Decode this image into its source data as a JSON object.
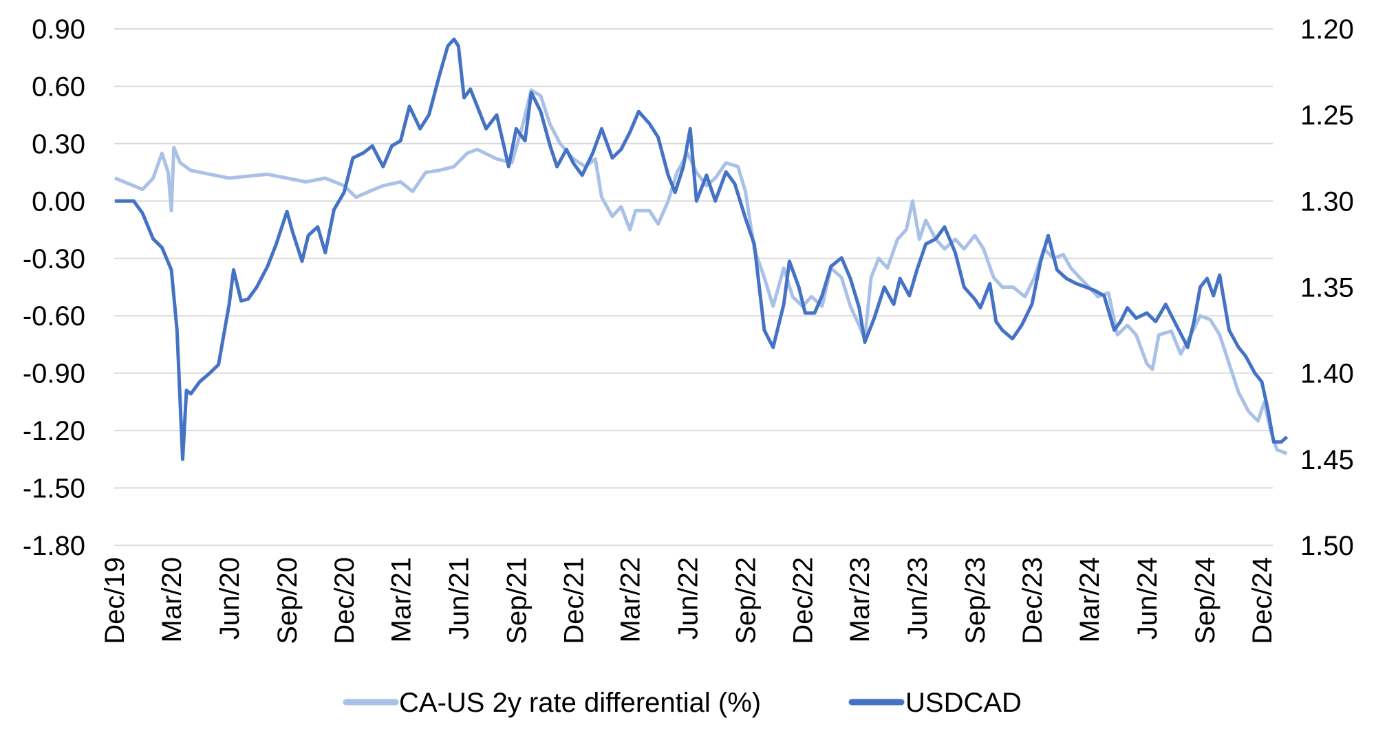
{
  "chart_data": {
    "type": "line",
    "title": "",
    "grid": true,
    "legend_position": "bottom",
    "x_ticks": [
      "Dec/19",
      "Mar/20",
      "Jun/20",
      "Sep/20",
      "Dec/20",
      "Mar/21",
      "Jun/21",
      "Sep/21",
      "Dec/21",
      "Mar/22",
      "Jun/22",
      "Sep/22",
      "Dec/22",
      "Mar/23",
      "Jun/23",
      "Sep/23",
      "Dec/23",
      "Mar/24",
      "Jun/24",
      "Sep/24",
      "Dec/24"
    ],
    "x_tick_dates": [
      "2019-12-01",
      "2020-03-01",
      "2020-06-01",
      "2020-09-01",
      "2020-12-01",
      "2021-03-01",
      "2021-06-01",
      "2021-09-01",
      "2021-12-01",
      "2022-03-01",
      "2022-06-01",
      "2022-09-01",
      "2022-12-01",
      "2023-03-01",
      "2023-06-01",
      "2023-09-01",
      "2023-12-01",
      "2024-03-01",
      "2024-06-01",
      "2024-09-01",
      "2024-12-01"
    ],
    "left_axis": {
      "ylim": [
        -1.8,
        0.9
      ],
      "ticks": [
        "0.90",
        "0.60",
        "0.30",
        "0.00",
        "-0.30",
        "-0.60",
        "-0.90",
        "-1.20",
        "-1.50",
        "-1.80"
      ]
    },
    "right_axis": {
      "ylim": [
        1.2,
        1.5
      ],
      "inverted": true,
      "ticks": [
        "1.20",
        "1.25",
        "1.30",
        "1.35",
        "1.40",
        "1.45",
        "1.50"
      ]
    },
    "series": [
      {
        "name": "CA-US 2y rate differential (%)",
        "axis": "left",
        "color": "#a9c1e7",
        "points": [
          [
            "2019-12-02",
            0.12
          ],
          [
            "2020-01-01",
            0.08
          ],
          [
            "2020-01-15",
            0.06
          ],
          [
            "2020-02-01",
            0.12
          ],
          [
            "2020-02-15",
            0.25
          ],
          [
            "2020-02-25",
            0.15
          ],
          [
            "2020-03-01",
            -0.05
          ],
          [
            "2020-03-05",
            0.28
          ],
          [
            "2020-03-15",
            0.2
          ],
          [
            "2020-04-01",
            0.16
          ],
          [
            "2020-05-01",
            0.14
          ],
          [
            "2020-06-01",
            0.12
          ],
          [
            "2020-07-01",
            0.13
          ],
          [
            "2020-08-01",
            0.14
          ],
          [
            "2020-09-01",
            0.12
          ],
          [
            "2020-10-01",
            0.1
          ],
          [
            "2020-11-01",
            0.12
          ],
          [
            "2020-12-01",
            0.08
          ],
          [
            "2020-12-20",
            0.02
          ],
          [
            "2021-01-10",
            0.05
          ],
          [
            "2021-02-01",
            0.08
          ],
          [
            "2021-03-01",
            0.1
          ],
          [
            "2021-03-20",
            0.05
          ],
          [
            "2021-04-10",
            0.15
          ],
          [
            "2021-05-01",
            0.16
          ],
          [
            "2021-05-25",
            0.18
          ],
          [
            "2021-06-15",
            0.25
          ],
          [
            "2021-07-01",
            0.27
          ],
          [
            "2021-08-01",
            0.22
          ],
          [
            "2021-08-25",
            0.2
          ],
          [
            "2021-09-10",
            0.38
          ],
          [
            "2021-09-25",
            0.58
          ],
          [
            "2021-10-10",
            0.55
          ],
          [
            "2021-10-25",
            0.4
          ],
          [
            "2021-11-10",
            0.3
          ],
          [
            "2021-12-01",
            0.22
          ],
          [
            "2021-12-20",
            0.18
          ],
          [
            "2022-01-05",
            0.22
          ],
          [
            "2022-01-15",
            0.02
          ],
          [
            "2022-02-01",
            -0.08
          ],
          [
            "2022-02-15",
            -0.03
          ],
          [
            "2022-03-01",
            -0.15
          ],
          [
            "2022-03-10",
            -0.05
          ],
          [
            "2022-04-01",
            -0.05
          ],
          [
            "2022-04-15",
            -0.12
          ],
          [
            "2022-05-01",
            0.0
          ],
          [
            "2022-05-15",
            0.15
          ],
          [
            "2022-06-01",
            0.25
          ],
          [
            "2022-06-15",
            0.15
          ],
          [
            "2022-07-01",
            0.08
          ],
          [
            "2022-07-15",
            0.12
          ],
          [
            "2022-08-01",
            0.2
          ],
          [
            "2022-08-20",
            0.18
          ],
          [
            "2022-09-01",
            0.05
          ],
          [
            "2022-09-15",
            -0.25
          ],
          [
            "2022-10-01",
            -0.4
          ],
          [
            "2022-10-15",
            -0.55
          ],
          [
            "2022-11-01",
            -0.35
          ],
          [
            "2022-11-15",
            -0.5
          ],
          [
            "2022-12-01",
            -0.55
          ],
          [
            "2022-12-15",
            -0.5
          ],
          [
            "2023-01-01",
            -0.55
          ],
          [
            "2023-01-15",
            -0.35
          ],
          [
            "2023-02-01",
            -0.4
          ],
          [
            "2023-02-15",
            -0.55
          ],
          [
            "2023-03-01",
            -0.65
          ],
          [
            "2023-03-10",
            -0.72
          ],
          [
            "2023-03-20",
            -0.4
          ],
          [
            "2023-04-01",
            -0.3
          ],
          [
            "2023-04-15",
            -0.35
          ],
          [
            "2023-05-01",
            -0.2
          ],
          [
            "2023-05-15",
            -0.15
          ],
          [
            "2023-05-25",
            0.0
          ],
          [
            "2023-06-05",
            -0.2
          ],
          [
            "2023-06-15",
            -0.1
          ],
          [
            "2023-07-01",
            -0.2
          ],
          [
            "2023-07-15",
            -0.25
          ],
          [
            "2023-08-01",
            -0.2
          ],
          [
            "2023-08-15",
            -0.25
          ],
          [
            "2023-09-01",
            -0.18
          ],
          [
            "2023-09-15",
            -0.25
          ],
          [
            "2023-10-01",
            -0.4
          ],
          [
            "2023-10-15",
            -0.45
          ],
          [
            "2023-11-01",
            -0.45
          ],
          [
            "2023-11-20",
            -0.5
          ],
          [
            "2023-12-05",
            -0.4
          ],
          [
            "2023-12-20",
            -0.25
          ],
          [
            "2024-01-05",
            -0.3
          ],
          [
            "2024-01-20",
            -0.28
          ],
          [
            "2024-02-01",
            -0.35
          ],
          [
            "2024-02-15",
            -0.4
          ],
          [
            "2024-03-01",
            -0.45
          ],
          [
            "2024-03-15",
            -0.5
          ],
          [
            "2024-04-01",
            -0.48
          ],
          [
            "2024-04-15",
            -0.7
          ],
          [
            "2024-05-01",
            -0.65
          ],
          [
            "2024-05-15",
            -0.7
          ],
          [
            "2024-06-01",
            -0.85
          ],
          [
            "2024-06-10",
            -0.88
          ],
          [
            "2024-06-20",
            -0.7
          ],
          [
            "2024-07-10",
            -0.68
          ],
          [
            "2024-07-25",
            -0.8
          ],
          [
            "2024-08-10",
            -0.7
          ],
          [
            "2024-08-25",
            -0.6
          ],
          [
            "2024-09-10",
            -0.62
          ],
          [
            "2024-09-25",
            -0.7
          ],
          [
            "2024-10-10",
            -0.85
          ],
          [
            "2024-10-25",
            -1.0
          ],
          [
            "2024-11-10",
            -1.1
          ],
          [
            "2024-11-25",
            -1.15
          ],
          [
            "2024-12-05",
            -1.05
          ],
          [
            "2024-12-15",
            -1.2
          ],
          [
            "2024-12-25",
            -1.3
          ],
          [
            "2025-01-10",
            -1.32
          ]
        ]
      },
      {
        "name": "USDCAD",
        "axis": "right",
        "color": "#4472c4",
        "points": [
          [
            "2019-12-02",
            1.3
          ],
          [
            "2020-01-01",
            1.3
          ],
          [
            "2020-01-15",
            1.307
          ],
          [
            "2020-02-01",
            1.322
          ],
          [
            "2020-02-15",
            1.327
          ],
          [
            "2020-03-01",
            1.34
          ],
          [
            "2020-03-10",
            1.375
          ],
          [
            "2020-03-19",
            1.45
          ],
          [
            "2020-03-25",
            1.41
          ],
          [
            "2020-04-01",
            1.412
          ],
          [
            "2020-04-15",
            1.405
          ],
          [
            "2020-05-01",
            1.4
          ],
          [
            "2020-05-15",
            1.395
          ],
          [
            "2020-06-01",
            1.36
          ],
          [
            "2020-06-08",
            1.34
          ],
          [
            "2020-06-20",
            1.358
          ],
          [
            "2020-07-01",
            1.357
          ],
          [
            "2020-07-15",
            1.35
          ],
          [
            "2020-08-01",
            1.338
          ],
          [
            "2020-08-15",
            1.325
          ],
          [
            "2020-09-01",
            1.306
          ],
          [
            "2020-09-10",
            1.318
          ],
          [
            "2020-09-25",
            1.335
          ],
          [
            "2020-10-05",
            1.32
          ],
          [
            "2020-10-20",
            1.315
          ],
          [
            "2020-11-01",
            1.33
          ],
          [
            "2020-11-15",
            1.305
          ],
          [
            "2020-12-01",
            1.295
          ],
          [
            "2020-12-15",
            1.275
          ],
          [
            "2021-01-01",
            1.272
          ],
          [
            "2021-01-15",
            1.268
          ],
          [
            "2021-02-01",
            1.28
          ],
          [
            "2021-02-15",
            1.268
          ],
          [
            "2021-03-01",
            1.265
          ],
          [
            "2021-03-15",
            1.245
          ],
          [
            "2021-04-01",
            1.258
          ],
          [
            "2021-04-15",
            1.25
          ],
          [
            "2021-05-01",
            1.228
          ],
          [
            "2021-05-15",
            1.21
          ],
          [
            "2021-05-25",
            1.206
          ],
          [
            "2021-06-01",
            1.21
          ],
          [
            "2021-06-10",
            1.24
          ],
          [
            "2021-06-20",
            1.235
          ],
          [
            "2021-07-01",
            1.245
          ],
          [
            "2021-07-15",
            1.258
          ],
          [
            "2021-08-01",
            1.25
          ],
          [
            "2021-08-20",
            1.28
          ],
          [
            "2021-09-01",
            1.258
          ],
          [
            "2021-09-15",
            1.265
          ],
          [
            "2021-09-25",
            1.237
          ],
          [
            "2021-10-10",
            1.248
          ],
          [
            "2021-10-25",
            1.268
          ],
          [
            "2021-11-05",
            1.28
          ],
          [
            "2021-11-20",
            1.27
          ],
          [
            "2021-12-01",
            1.278
          ],
          [
            "2021-12-15",
            1.285
          ],
          [
            "2022-01-01",
            1.272
          ],
          [
            "2022-01-15",
            1.258
          ],
          [
            "2022-02-01",
            1.275
          ],
          [
            "2022-02-15",
            1.27
          ],
          [
            "2022-03-01",
            1.26
          ],
          [
            "2022-03-15",
            1.248
          ],
          [
            "2022-04-01",
            1.255
          ],
          [
            "2022-04-15",
            1.263
          ],
          [
            "2022-05-01",
            1.285
          ],
          [
            "2022-05-12",
            1.295
          ],
          [
            "2022-05-25",
            1.28
          ],
          [
            "2022-06-05",
            1.258
          ],
          [
            "2022-06-15",
            1.3
          ],
          [
            "2022-07-01",
            1.285
          ],
          [
            "2022-07-15",
            1.3
          ],
          [
            "2022-08-01",
            1.283
          ],
          [
            "2022-08-15",
            1.29
          ],
          [
            "2022-09-01",
            1.31
          ],
          [
            "2022-09-15",
            1.325
          ],
          [
            "2022-10-01",
            1.375
          ],
          [
            "2022-10-15",
            1.385
          ],
          [
            "2022-11-01",
            1.36
          ],
          [
            "2022-11-10",
            1.335
          ],
          [
            "2022-11-25",
            1.35
          ],
          [
            "2022-12-05",
            1.365
          ],
          [
            "2022-12-20",
            1.365
          ],
          [
            "2023-01-01",
            1.355
          ],
          [
            "2023-01-15",
            1.338
          ],
          [
            "2023-02-01",
            1.333
          ],
          [
            "2023-02-15",
            1.345
          ],
          [
            "2023-03-01",
            1.362
          ],
          [
            "2023-03-10",
            1.382
          ],
          [
            "2023-03-25",
            1.368
          ],
          [
            "2023-04-10",
            1.35
          ],
          [
            "2023-04-25",
            1.36
          ],
          [
            "2023-05-05",
            1.345
          ],
          [
            "2023-05-20",
            1.355
          ],
          [
            "2023-06-01",
            1.34
          ],
          [
            "2023-06-15",
            1.325
          ],
          [
            "2023-07-01",
            1.322
          ],
          [
            "2023-07-15",
            1.315
          ],
          [
            "2023-08-01",
            1.33
          ],
          [
            "2023-08-15",
            1.35
          ],
          [
            "2023-09-01",
            1.357
          ],
          [
            "2023-09-10",
            1.362
          ],
          [
            "2023-09-25",
            1.348
          ],
          [
            "2023-10-05",
            1.37
          ],
          [
            "2023-10-15",
            1.375
          ],
          [
            "2023-10-31",
            1.38
          ],
          [
            "2023-11-15",
            1.372
          ],
          [
            "2023-12-01",
            1.36
          ],
          [
            "2023-12-15",
            1.335
          ],
          [
            "2023-12-27",
            1.32
          ],
          [
            "2024-01-10",
            1.34
          ],
          [
            "2024-01-25",
            1.345
          ],
          [
            "2024-02-10",
            1.348
          ],
          [
            "2024-02-25",
            1.35
          ],
          [
            "2024-03-10",
            1.352
          ],
          [
            "2024-03-25",
            1.355
          ],
          [
            "2024-04-10",
            1.375
          ],
          [
            "2024-04-20",
            1.37
          ],
          [
            "2024-05-01",
            1.362
          ],
          [
            "2024-05-15",
            1.368
          ],
          [
            "2024-06-01",
            1.365
          ],
          [
            "2024-06-15",
            1.37
          ],
          [
            "2024-07-01",
            1.36
          ],
          [
            "2024-07-15",
            1.37
          ],
          [
            "2024-08-05",
            1.385
          ],
          [
            "2024-08-15",
            1.37
          ],
          [
            "2024-08-25",
            1.35
          ],
          [
            "2024-09-05",
            1.345
          ],
          [
            "2024-09-15",
            1.355
          ],
          [
            "2024-09-25",
            1.343
          ],
          [
            "2024-10-10",
            1.375
          ],
          [
            "2024-10-25",
            1.385
          ],
          [
            "2024-11-05",
            1.39
          ],
          [
            "2024-11-20",
            1.4
          ],
          [
            "2024-12-01",
            1.405
          ],
          [
            "2024-12-10",
            1.42
          ],
          [
            "2024-12-20",
            1.44
          ],
          [
            "2025-01-01",
            1.44
          ],
          [
            "2025-01-10",
            1.437
          ]
        ]
      }
    ]
  }
}
